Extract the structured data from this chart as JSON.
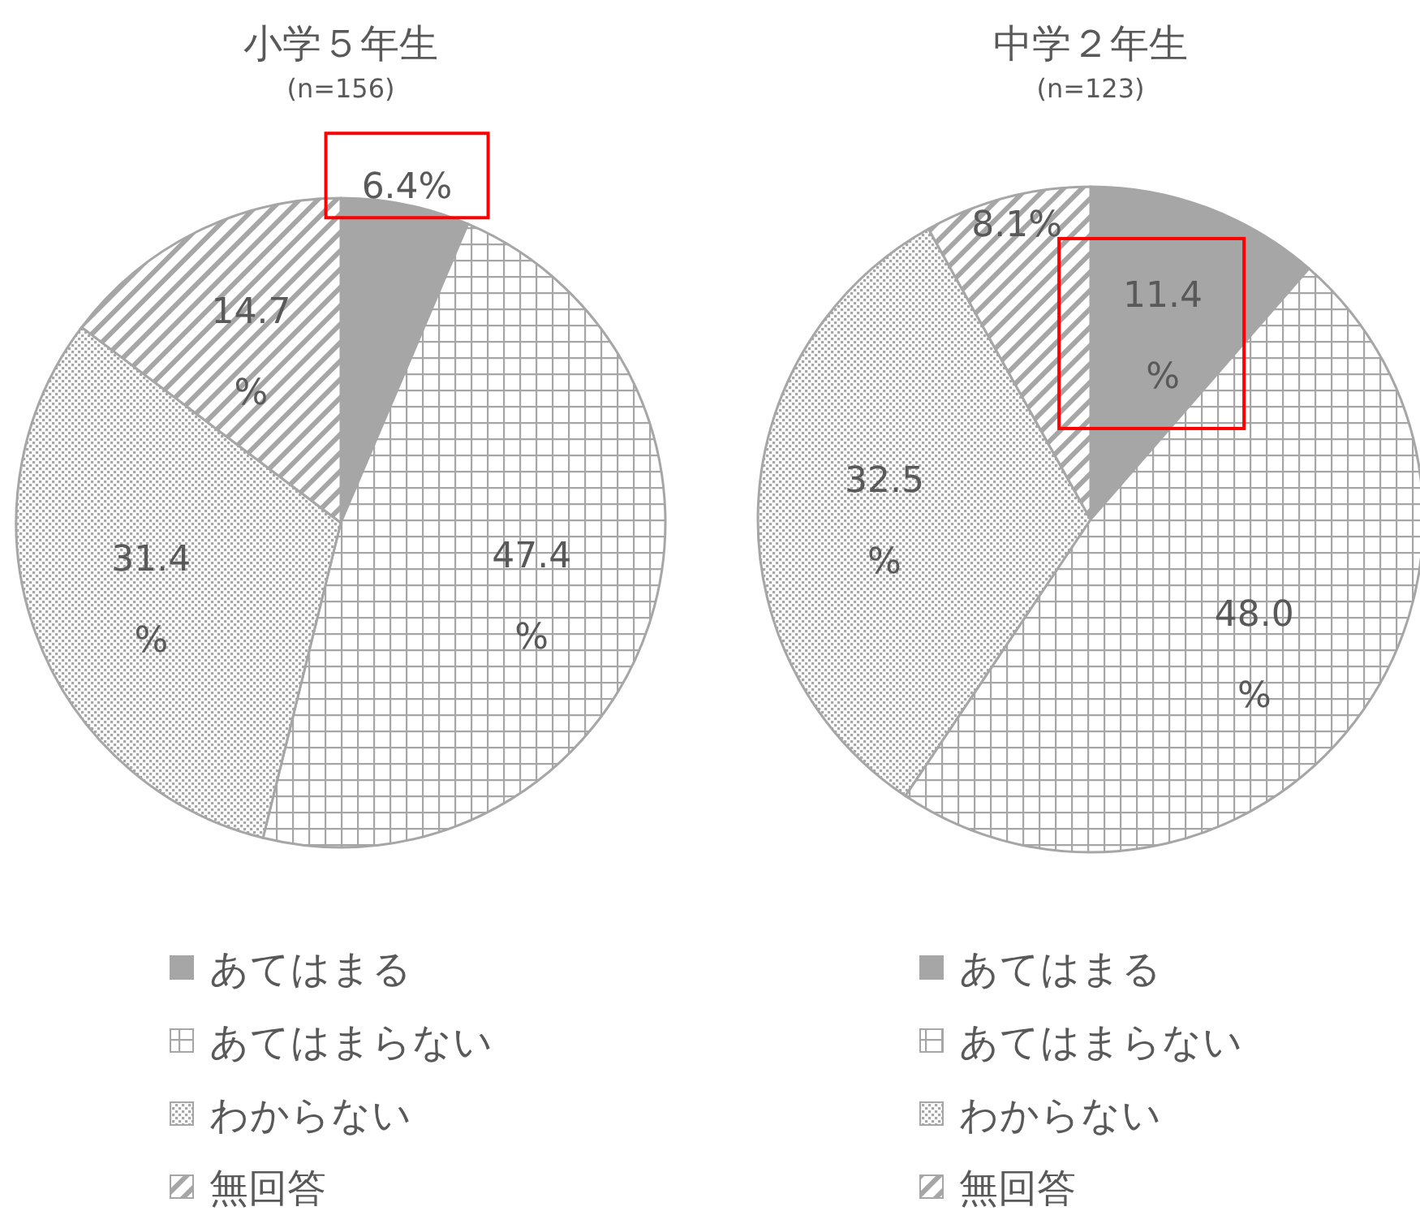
{
  "chart_data": [
    {
      "type": "pie",
      "title": "小学５年生",
      "subtitle": "(n=156)",
      "categories": [
        "あてはまる",
        "あてはまらない",
        "わからない",
        "無回答"
      ],
      "values": [
        6.4,
        47.4,
        31.4,
        14.7
      ],
      "value_labels": [
        "6.4%",
        "47.4%",
        "31.4%",
        "14.7%"
      ],
      "colors": [
        "#a6a6a6",
        "#a6a6a6",
        "#a6a6a6",
        "#a6a6a6"
      ],
      "legend": "bottom"
    },
    {
      "type": "pie",
      "title": "中学２年生",
      "subtitle": "(n=123)",
      "categories": [
        "あてはまる",
        "あてはまらない",
        "わからない",
        "無回答"
      ],
      "values": [
        11.4,
        48.0,
        32.5,
        8.1
      ],
      "value_labels": [
        "11.4%",
        "48.0%",
        "32.5%",
        "8.1%"
      ],
      "colors": [
        "#a6a6a6",
        "#a6a6a6",
        "#a6a6a6",
        "#a6a6a6"
      ],
      "legend": "bottom"
    }
  ]
}
